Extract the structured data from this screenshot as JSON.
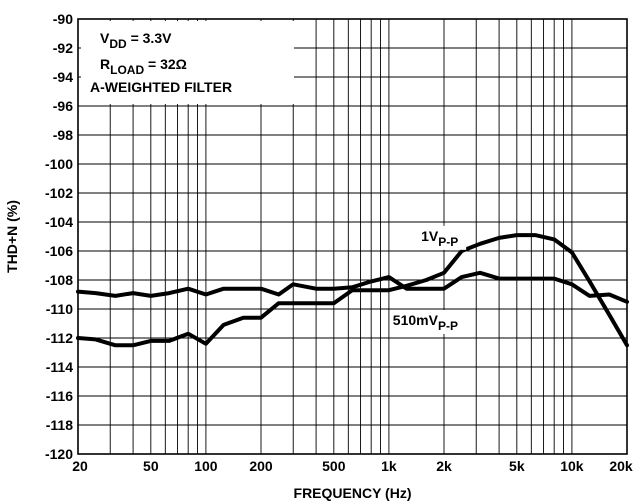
{
  "chart_data": {
    "type": "line",
    "title": "",
    "xlabel": "FREQUENCY (Hz)",
    "ylabel": "THD+N (%)",
    "x_scale": "log",
    "xlim": [
      20,
      20000
    ],
    "ylim": [
      -120,
      -90
    ],
    "grid": true,
    "x_tick_labels": [
      {
        "value": 20,
        "label": "20"
      },
      {
        "value": 50,
        "label": "50"
      },
      {
        "value": 100,
        "label": "100"
      },
      {
        "value": 200,
        "label": "200"
      },
      {
        "value": 500,
        "label": "500"
      },
      {
        "value": 1000,
        "label": "1k"
      },
      {
        "value": 2000,
        "label": "2k"
      },
      {
        "value": 5000,
        "label": "5k"
      },
      {
        "value": 10000,
        "label": "10k"
      },
      {
        "value": 20000,
        "label": "20k"
      }
    ],
    "y_ticks": [
      -90,
      -92,
      -94,
      -96,
      -98,
      -100,
      -102,
      -104,
      -106,
      -108,
      -110,
      -112,
      -114,
      -116,
      -118,
      -120
    ],
    "annotation_box": {
      "lines": [
        {
          "main": "V",
          "sub": "DD",
          "rest": " = 3.3V"
        },
        {
          "main": "R",
          "sub": "LOAD",
          "rest": " = 32Ω"
        },
        {
          "main": "A-WEIGHTED FILTER",
          "sub": "",
          "rest": ""
        }
      ]
    },
    "series": [
      {
        "name": "1VP-P",
        "label": {
          "main": "1V",
          "sub": "P-P",
          "at_x": 1500,
          "at_y": -105.3
        },
        "x": [
          20,
          25,
          32,
          40,
          50,
          63,
          80,
          100,
          125,
          160,
          200,
          250,
          300,
          400,
          500,
          630,
          800,
          1000,
          1250,
          1600,
          2000,
          2500,
          3150,
          4000,
          5000,
          6300,
          8000,
          10000,
          12500,
          16000,
          20000
        ],
        "y": [
          -112.0,
          -112.1,
          -112.5,
          -112.5,
          -112.2,
          -112.2,
          -111.7,
          -112.4,
          -111.1,
          -110.6,
          -110.6,
          -109.6,
          -109.6,
          -109.6,
          -109.6,
          -108.7,
          -108.7,
          -108.7,
          -108.4,
          -108.0,
          -107.5,
          -106.0,
          -105.5,
          -105.1,
          -104.9,
          -104.9,
          -105.2,
          -106.1,
          -108.1,
          -110.4,
          -112.5
        ]
      },
      {
        "name": "510mVP-P",
        "label": {
          "main": "510mV",
          "sub": "P-P",
          "at_x": 1050,
          "at_y": -111.1
        },
        "x": [
          20,
          25,
          32,
          40,
          50,
          63,
          80,
          100,
          125,
          160,
          200,
          250,
          300,
          400,
          500,
          630,
          800,
          1000,
          1250,
          1600,
          2000,
          2500,
          3150,
          4000,
          5000,
          6300,
          8000,
          10000,
          12500,
          16000,
          20000
        ],
        "y": [
          -108.8,
          -108.9,
          -109.1,
          -108.9,
          -109.1,
          -108.9,
          -108.6,
          -109.0,
          -108.6,
          -108.6,
          -108.6,
          -109.0,
          -108.3,
          -108.6,
          -108.6,
          -108.5,
          -108.1,
          -107.8,
          -108.6,
          -108.6,
          -108.6,
          -107.8,
          -107.5,
          -107.9,
          -107.9,
          -107.9,
          -107.9,
          -108.3,
          -109.1,
          -109.0,
          -109.5
        ]
      }
    ]
  }
}
